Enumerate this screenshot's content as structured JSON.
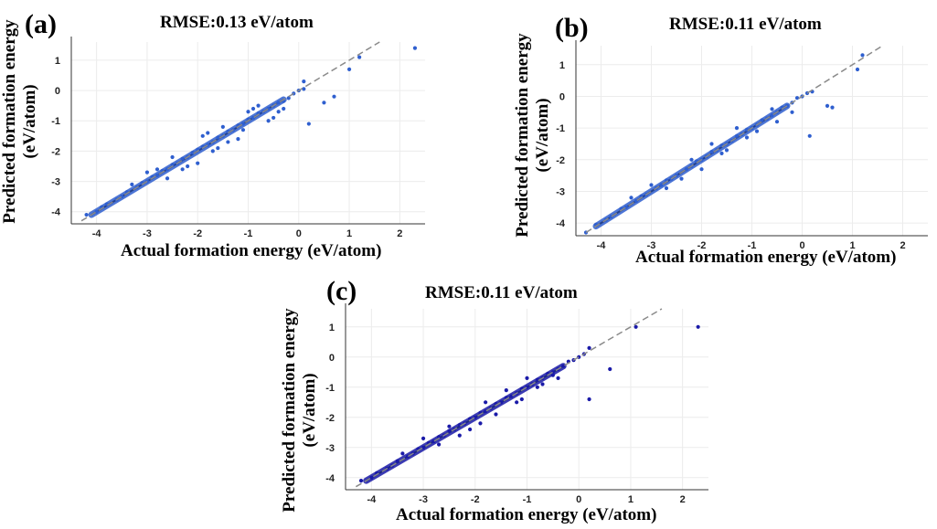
{
  "chart_data": [
    {
      "type": "scatter",
      "panel_label": "(a)",
      "title": "RMSE:0.13 eV/atom",
      "xlabel": "Actual formation energy (eV/atom)",
      "ylabel": [
        "Predicted formation energy",
        "(eV/atom)"
      ],
      "xlim": [
        -4.5,
        2.5
      ],
      "ylim": [
        -4.4,
        1.6
      ],
      "x_ticks": [
        -4,
        -3,
        -2,
        -1,
        0,
        1,
        2
      ],
      "y_ticks": [
        -4,
        -3,
        -2,
        -1,
        0,
        1
      ],
      "marker_color": "#2f5fcf",
      "parity_line": {
        "from": [
          -4.3,
          -4.3
        ],
        "to": [
          1.6,
          1.6
        ],
        "style": "dashed",
        "color": "#8a8a8a"
      },
      "grid": true,
      "series": [
        {
          "x": [
            -4.2,
            -4.0,
            -3.9,
            -3.8,
            -3.6,
            -3.5,
            -3.4,
            -3.2,
            -3.1,
            -3.0,
            -2.9,
            -2.8,
            -2.7,
            -2.6,
            -2.5,
            -2.4,
            -2.3,
            -2.2,
            -2.1,
            -2.0,
            -1.9,
            -1.8,
            -1.7,
            -1.6,
            -1.5,
            -1.4,
            -1.3,
            -1.2,
            -1.1,
            -1.0,
            -0.9,
            -0.8,
            -0.7,
            -0.6,
            -0.5,
            -0.4,
            -0.3,
            -0.2,
            -0.1,
            0.0,
            0.1,
            0.2,
            0.5,
            0.7,
            1.0,
            1.2,
            2.3,
            -3.0,
            -2.5,
            -2.2,
            -1.8,
            -1.5,
            -1.2,
            -0.9,
            -0.6,
            -2.0,
            -1.6,
            -1.0,
            -0.4,
            0.1,
            -3.3,
            -2.8,
            -2.3,
            -1.9,
            -1.4,
            -0.8,
            -0.5,
            -2.6,
            -1.1,
            -0.3,
            -1.7
          ],
          "y": [
            -4.1,
            -4.0,
            -3.85,
            -3.75,
            -3.6,
            -3.5,
            -3.35,
            -3.2,
            -3.05,
            -3.0,
            -2.85,
            -2.8,
            -2.65,
            -2.6,
            -2.45,
            -2.4,
            -2.25,
            -2.2,
            -2.05,
            -1.95,
            -1.85,
            -1.8,
            -1.7,
            -1.55,
            -1.5,
            -1.35,
            -1.3,
            -1.15,
            -1.1,
            -0.95,
            -0.9,
            -0.75,
            -0.7,
            -0.6,
            -0.5,
            -0.4,
            -0.35,
            -0.25,
            -0.1,
            0.0,
            0.05,
            -1.1,
            -0.4,
            -0.2,
            0.7,
            1.1,
            1.4,
            -2.7,
            -2.2,
            -2.5,
            -1.4,
            -1.2,
            -1.6,
            -0.6,
            -1.0,
            -2.4,
            -1.9,
            -0.7,
            -0.7,
            0.3,
            -3.1,
            -2.6,
            -2.6,
            -1.5,
            -1.7,
            -0.5,
            -0.9,
            -2.9,
            -1.3,
            -0.6,
            -2.0
          ]
        }
      ]
    },
    {
      "type": "scatter",
      "panel_label": "(b)",
      "title": "RMSE:0.11 eV/atom",
      "xlabel": "Actual formation energy (eV/atom)",
      "ylabel": [
        "Predicted formation energy",
        "(eV/atom)"
      ],
      "xlim": [
        -4.5,
        2.5
      ],
      "ylim": [
        -4.4,
        1.6
      ],
      "x_ticks": [
        -4,
        -3,
        -2,
        -1,
        0,
        1,
        2
      ],
      "y_ticks": [
        -4,
        -3,
        -2,
        -1,
        0,
        1
      ],
      "marker_color": "#2f5fcf",
      "parity_line": {
        "from": [
          -4.3,
          -4.3
        ],
        "to": [
          1.6,
          1.6
        ],
        "style": "dashed",
        "color": "#8a8a8a"
      },
      "grid": true,
      "series": [
        {
          "x": [
            -4.3,
            -4.1,
            -3.9,
            -3.8,
            -3.6,
            -3.5,
            -3.3,
            -3.2,
            -3.1,
            -2.9,
            -2.8,
            -2.7,
            -2.6,
            -2.5,
            -2.3,
            -2.2,
            -2.1,
            -2.0,
            -1.9,
            -1.8,
            -1.7,
            -1.6,
            -1.5,
            -1.4,
            -1.3,
            -1.2,
            -1.1,
            -1.0,
            -0.9,
            -0.8,
            -0.7,
            -0.6,
            -0.5,
            -0.4,
            -0.3,
            -0.2,
            -0.1,
            0.0,
            0.1,
            0.2,
            0.5,
            0.6,
            1.1,
            1.2,
            -3.0,
            -2.4,
            -2.0,
            -1.6,
            -1.3,
            -0.9,
            -0.5,
            -2.2,
            -1.8,
            -1.1,
            -0.6,
            -0.2,
            -3.4,
            -2.7,
            -1.5,
            0.15
          ],
          "y": [
            -4.3,
            -4.05,
            -3.9,
            -3.8,
            -3.55,
            -3.5,
            -3.3,
            -3.15,
            -3.1,
            -2.9,
            -2.8,
            -2.65,
            -2.6,
            -2.5,
            -2.3,
            -2.2,
            -2.05,
            -2.0,
            -1.9,
            -1.75,
            -1.7,
            -1.55,
            -1.5,
            -1.4,
            -1.25,
            -1.2,
            -1.05,
            -1.0,
            -0.9,
            -0.75,
            -0.7,
            -0.6,
            -0.5,
            -0.35,
            -0.3,
            -0.2,
            -0.05,
            0.0,
            0.1,
            0.15,
            -0.3,
            -0.35,
            0.85,
            1.3,
            -2.8,
            -2.6,
            -2.3,
            -1.8,
            -1.0,
            -1.1,
            -0.8,
            -2.0,
            -1.5,
            -1.3,
            -0.4,
            -0.5,
            -3.2,
            -2.9,
            -1.7,
            -1.25
          ]
        }
      ]
    },
    {
      "type": "scatter",
      "panel_label": "(c)",
      "title": "RMSE:0.11 eV/atom",
      "xlabel": "Actual formation energy (eV/atom)",
      "ylabel": [
        "Predicted formation energy",
        "(eV/atom)"
      ],
      "xlim": [
        -4.5,
        2.5
      ],
      "ylim": [
        -4.4,
        1.6
      ],
      "x_ticks": [
        -4,
        -3,
        -2,
        -1,
        0,
        1,
        2
      ],
      "y_ticks": [
        -4,
        -3,
        -2,
        -1,
        0,
        1
      ],
      "marker_color": "#1a1aa8",
      "parity_line": {
        "from": [
          -4.3,
          -4.3
        ],
        "to": [
          1.6,
          1.6
        ],
        "style": "dashed",
        "color": "#8a8a8a"
      },
      "grid": true,
      "series": [
        {
          "x": [
            -4.2,
            -4.0,
            -3.9,
            -3.7,
            -3.6,
            -3.5,
            -3.3,
            -3.2,
            -3.1,
            -3.0,
            -2.9,
            -2.8,
            -2.7,
            -2.6,
            -2.5,
            -2.4,
            -2.3,
            -2.2,
            -2.1,
            -2.0,
            -1.9,
            -1.8,
            -1.7,
            -1.6,
            -1.5,
            -1.4,
            -1.3,
            -1.2,
            -1.1,
            -1.0,
            -0.9,
            -0.8,
            -0.7,
            -0.6,
            -0.5,
            -0.4,
            -0.3,
            -0.2,
            -0.1,
            0.0,
            0.1,
            0.2,
            0.6,
            1.1,
            2.3,
            -3.0,
            -2.5,
            -2.1,
            -1.8,
            -1.4,
            -1.1,
            -0.8,
            -0.4,
            -2.3,
            -1.6,
            -1.0,
            -0.5,
            0.2,
            -3.4,
            -2.7,
            -1.9,
            -1.2,
            -0.7
          ],
          "y": [
            -4.1,
            -4.0,
            -3.85,
            -3.7,
            -3.6,
            -3.45,
            -3.3,
            -3.2,
            -3.05,
            -3.0,
            -2.85,
            -2.8,
            -2.65,
            -2.6,
            -2.45,
            -2.4,
            -2.25,
            -2.2,
            -2.05,
            -2.0,
            -1.85,
            -1.8,
            -1.7,
            -1.55,
            -1.5,
            -1.35,
            -1.3,
            -1.2,
            -1.05,
            -1.0,
            -0.9,
            -0.75,
            -0.7,
            -0.55,
            -0.5,
            -0.4,
            -0.3,
            -0.15,
            -0.1,
            0.0,
            0.1,
            -1.4,
            -0.4,
            1.0,
            1.0,
            -2.7,
            -2.3,
            -2.4,
            -1.5,
            -1.1,
            -1.4,
            -1.0,
            -0.7,
            -2.6,
            -1.9,
            -0.7,
            -0.6,
            0.3,
            -3.2,
            -2.9,
            -2.2,
            -1.5,
            -0.9
          ]
        }
      ]
    }
  ]
}
